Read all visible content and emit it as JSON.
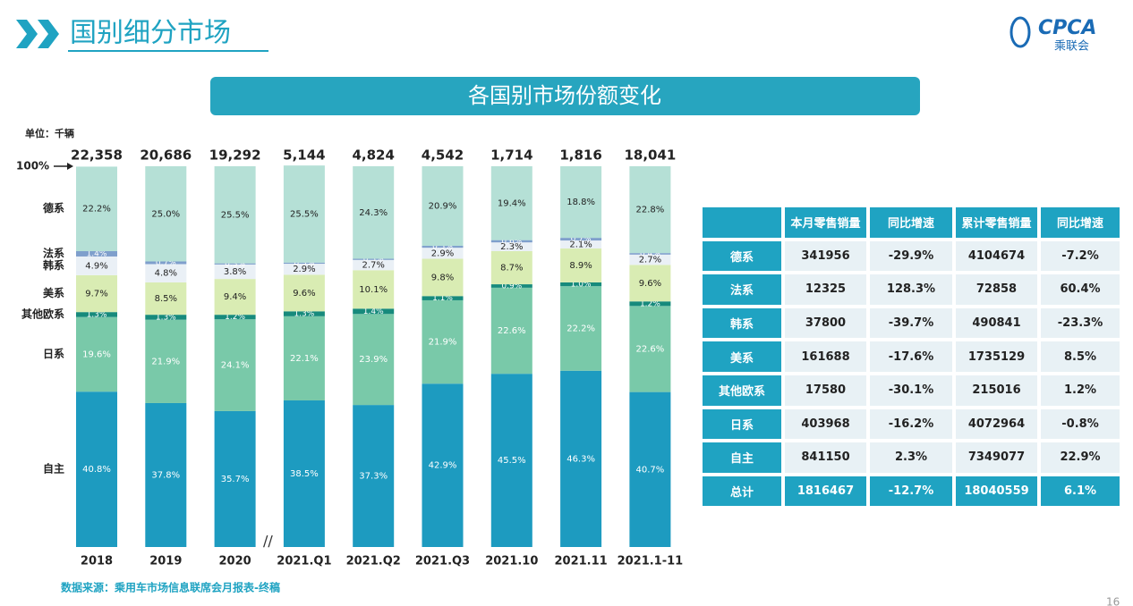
{
  "header": {
    "title": "国别细分市场",
    "banner": "各国别市场份额变化",
    "logo": "CPCA",
    "logo_sub": "乘联会",
    "page": "16"
  },
  "chart_data": {
    "type": "stacked_bar",
    "unit": "单位：千辆",
    "top_label": "100%",
    "source": "数据来源：乘用车市场信息联席会月报表-终稿",
    "categories": [
      "2018",
      "2019",
      "2020",
      "2021.Q1",
      "2021.Q2",
      "2021.Q3",
      "2021.10",
      "2021.11",
      "2021.1-11"
    ],
    "ylim": [
      0,
      100
    ],
    "totals": {
      "values": [
        22358,
        20686,
        19292,
        5144,
        4824,
        4542,
        1714,
        1816,
        18041
      ],
      "value_labels": [
        "22,358",
        "20,686",
        "19,292",
        "5,144",
        "4,824",
        "4,542",
        "1,714",
        "1,816",
        "18,041"
      ]
    },
    "series": [
      {
        "name": "自主",
        "color": "#1d9bc0",
        "label_color": "#ffffff",
        "values": [
          40.8,
          37.8,
          35.7,
          38.5,
          37.3,
          42.9,
          45.5,
          46.3,
          40.7
        ],
        "value_labels": [
          "40.8%",
          "37.8%",
          "35.7%",
          "38.5%",
          "37.3%",
          "42.9%",
          "45.5%",
          "46.3%",
          "40.7%"
        ]
      },
      {
        "name": "日系",
        "color": "#79c9a9",
        "label_color": "#ffffff",
        "values": [
          19.6,
          21.9,
          24.1,
          22.1,
          23.9,
          21.9,
          22.6,
          22.2,
          22.6
        ],
        "value_labels": [
          "19.6%",
          "21.9%",
          "24.1%",
          "22.1%",
          "23.9%",
          "21.9%",
          "22.6%",
          "22.2%",
          "22.6%"
        ]
      },
      {
        "name": "其他欧系",
        "color": "#178a7c",
        "label_color": "#ffffff",
        "values": [
          1.3,
          1.3,
          1.2,
          1.3,
          1.4,
          1.1,
          0.9,
          1.0,
          1.2
        ],
        "value_labels": [
          "1.3%",
          "1.3%",
          "1.2%",
          "1.3%",
          "1.4%",
          "1.1%",
          "0.9%",
          "1.0%",
          "1.2%"
        ]
      },
      {
        "name": "美系",
        "color": "#d9ecb3",
        "label_color": "#222222",
        "values": [
          9.7,
          8.5,
          9.4,
          9.6,
          10.1,
          9.8,
          8.7,
          8.9,
          9.6
        ],
        "value_labels": [
          "9.7%",
          "8.5%",
          "9.4%",
          "9.6%",
          "10.1%",
          "9.8%",
          "8.7%",
          "8.9%",
          "9.6%"
        ]
      },
      {
        "name": "韩系",
        "color": "#eaf0f6",
        "label_color": "#222222",
        "values": [
          4.9,
          4.8,
          3.8,
          2.9,
          2.7,
          2.9,
          2.3,
          2.1,
          2.7
        ],
        "value_labels": [
          "4.9%",
          "4.8%",
          "3.8%",
          "2.9%",
          "2.7%",
          "2.9%",
          "2.3%",
          "2.1%",
          "2.7%"
        ]
      },
      {
        "name": "法系",
        "color": "#7f9fcc",
        "label_color": "#ffffff",
        "values": [
          1.4,
          0.7,
          0.3,
          0.3,
          0.3,
          0.5,
          0.6,
          0.7,
          0.4
        ],
        "value_labels": [
          "1.4%",
          "0.7%",
          "0.3%",
          "0.3%",
          "0.3%",
          "0.5%",
          "0.6%",
          "0.7%",
          "0.4%"
        ]
      },
      {
        "name": "德系",
        "color": "#b5e0d6",
        "label_color": "#222222",
        "values": [
          22.2,
          25.0,
          25.5,
          25.5,
          24.3,
          20.9,
          19.4,
          18.8,
          22.8
        ],
        "value_labels": [
          "22.2%",
          "25.0%",
          "25.5%",
          "25.5%",
          "24.3%",
          "20.9%",
          "19.4%",
          "18.8%",
          "22.8%"
        ]
      }
    ]
  },
  "table": {
    "header": [
      "本月零售销量",
      "同比增速",
      "累计零售销量",
      "同比增速"
    ],
    "rows": [
      [
        "德系",
        "341956",
        "-29.9%",
        "4104674",
        "-7.2%"
      ],
      [
        "法系",
        "12325",
        "128.3%",
        "72858",
        "60.4%"
      ],
      [
        "韩系",
        "37800",
        "-39.7%",
        "490841",
        "-23.3%"
      ],
      [
        "美系",
        "161688",
        "-17.6%",
        "1735129",
        "8.5%"
      ],
      [
        "其他欧系",
        "17580",
        "-30.1%",
        "215016",
        "1.2%"
      ],
      [
        "日系",
        "403968",
        "-16.2%",
        "4072964",
        "-0.8%"
      ],
      [
        "自主",
        "841150",
        "2.3%",
        "7349077",
        "22.9%"
      ],
      [
        "总计",
        "1816467",
        "-12.7%",
        "18040559",
        "6.1%"
      ]
    ]
  }
}
